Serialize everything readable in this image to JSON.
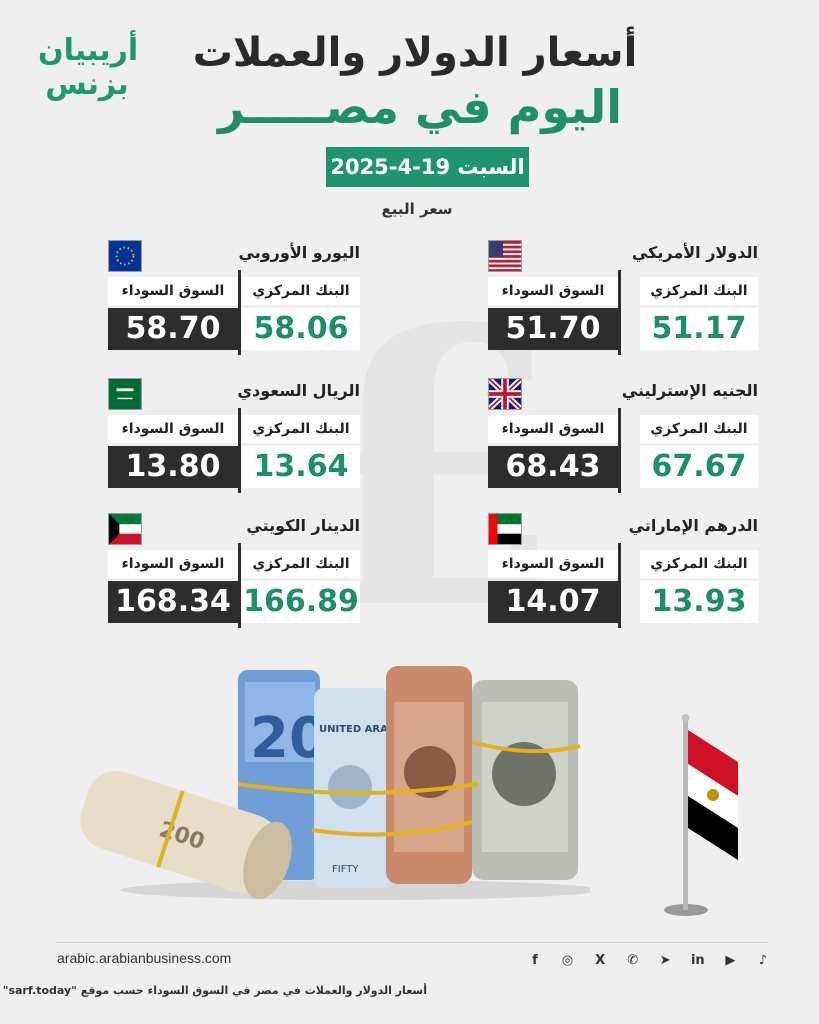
{
  "logo": {
    "line1": "أريبيان",
    "line2": "بزنس"
  },
  "title_line1": "أسعار الدولار والعملات",
  "title_line2": "اليوم في مصـــــر",
  "date": "السبت 19-4-2025",
  "sell_label": "سعر البيع",
  "labels": {
    "central_bank": "البنك المركزي",
    "black_market": "السوق السوداء"
  },
  "currencies": [
    {
      "name": "الدولار الأمريكي",
      "central": "51.17",
      "black": "51.70",
      "flag": "us-flag-icon"
    },
    {
      "name": "اليورو الأوروبي",
      "central": "58.06",
      "black": "58.70",
      "flag": "eu-flag-icon"
    },
    {
      "name": "الجنيه الإسترليني",
      "central": "67.67",
      "black": "68.43",
      "flag": "uk-flag-icon"
    },
    {
      "name": "الريال السعودي",
      "central": "13.64",
      "black": "13.80",
      "flag": "saudi-flag-icon"
    },
    {
      "name": "الدرهم الإماراتي",
      "central": "13.93",
      "black": "14.07",
      "flag": "uae-flag-icon"
    },
    {
      "name": "الدينار الكويتي",
      "central": "166.89",
      "black": "168.34",
      "flag": "kuwait-flag-icon"
    }
  ],
  "banknotes": {
    "euro_note": "20",
    "uae_note": "UNITED ARAB",
    "uae_note_amount": "FIFTY",
    "egp_note": "200"
  },
  "footer": {
    "url": "arabic.arabianbusiness.com",
    "socials": [
      "tiktok-icon",
      "youtube-icon",
      "linkedin-icon",
      "telegram-icon",
      "whatsapp-icon",
      "x-icon",
      "instagram-icon",
      "facebook-icon"
    ],
    "social_glyphs": [
      "f",
      "◎",
      "X",
      "✆",
      "➤",
      "in",
      "▶",
      "♪"
    ],
    "note": "أسعار الدولار والعملات في مصر في السوق السوداء حسب موقع \"sarf.today\""
  },
  "colors": {
    "accent": "#1f8f6a",
    "dark": "#2d2d2d",
    "background": "#efefef"
  }
}
